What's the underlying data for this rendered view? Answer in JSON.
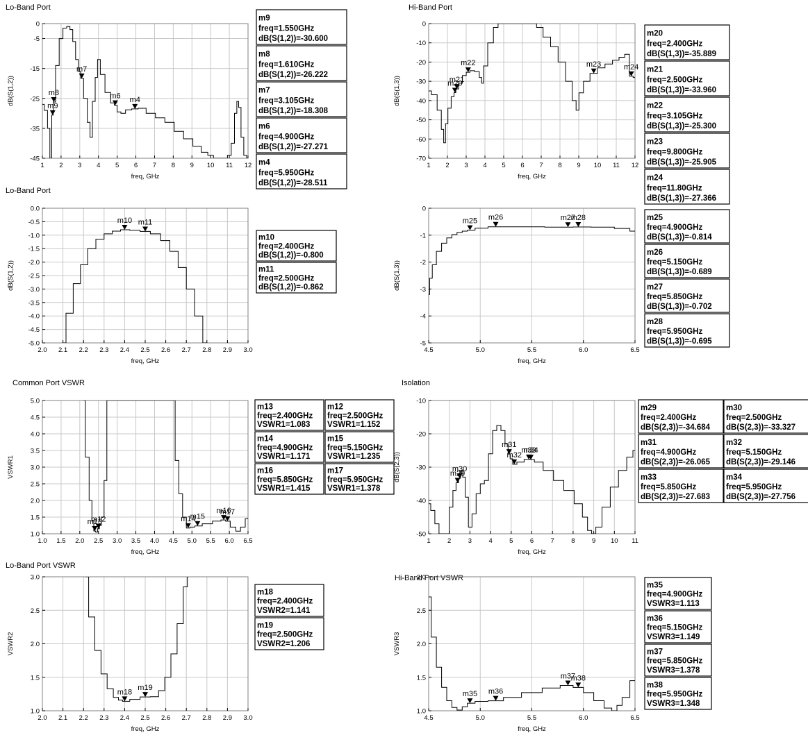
{
  "chart_data": [
    {
      "type": "line",
      "title": "Lo-Band Port",
      "xlabel": "freq, GHz",
      "ylabel": "dB(S(1,2))",
      "xlim": [
        1,
        12
      ],
      "ylim": [
        -45,
        0
      ],
      "xticks": [
        1,
        2,
        3,
        4,
        5,
        6,
        7,
        8,
        9,
        10,
        11,
        12
      ],
      "yticks": [
        0,
        -5,
        -15,
        -25,
        -35,
        -45
      ],
      "grid": true,
      "series": [
        {
          "x": [
            1.0,
            1.2,
            1.35,
            1.45,
            1.55,
            1.61,
            1.8,
            2.0,
            2.2,
            2.4,
            2.55,
            2.7,
            2.85,
            3.0,
            3.105,
            3.3,
            3.5,
            3.6,
            3.75,
            3.9,
            4.0,
            4.2,
            4.5,
            4.8,
            4.9,
            5.1,
            5.3,
            5.6,
            5.95,
            6.3,
            6.8,
            7.3,
            7.8,
            8.3,
            8.8,
            9.3,
            9.7,
            10.0,
            10.3,
            10.45,
            10.6,
            10.8,
            11.0,
            11.2,
            11.35,
            11.45,
            11.55,
            11.7,
            11.85,
            12.0
          ],
          "y": [
            -27,
            -29,
            -35,
            -45,
            -30.6,
            -26.222,
            -14,
            -5,
            -1.5,
            -1,
            -2,
            -6,
            -12,
            -16,
            -18.308,
            -25,
            -33,
            -38,
            -26,
            -18,
            -12,
            -17,
            -23,
            -26.5,
            -27.271,
            -29.5,
            -30,
            -28.8,
            -28.511,
            -28.3,
            -30,
            -31.5,
            -33,
            -36,
            -38.5,
            -41,
            -43,
            -44,
            -45,
            -45,
            -45,
            -45,
            -44,
            -40,
            -30,
            -26,
            -28,
            -38,
            -44,
            -45
          ]
        }
      ],
      "markers": [
        {
          "name": "m9",
          "freq": "1.550GHz",
          "label": "dB(S(1,2))=-30.600",
          "x": 1.55,
          "y": -30.6
        },
        {
          "name": "m8",
          "freq": "1.610GHz",
          "label": "dB(S(1,2))=-26.222",
          "x": 1.61,
          "y": -26.222
        },
        {
          "name": "m7",
          "freq": "3.105GHz",
          "label": "dB(S(1,2))=-18.308",
          "x": 3.105,
          "y": -18.308
        },
        {
          "name": "m6",
          "freq": "4.900GHz",
          "label": "dB(S(1,2))=-27.271",
          "x": 4.9,
          "y": -27.271
        },
        {
          "name": "m4",
          "freq": "5.950GHz",
          "label": "dB(S(1,2))=-28.511",
          "x": 5.95,
          "y": -28.511
        }
      ]
    },
    {
      "type": "line",
      "title": "Hi-Band Port",
      "xlabel": "freq, GHz",
      "ylabel": "dB(S(1,3))",
      "xlim": [
        1,
        12
      ],
      "ylim": [
        -70,
        0
      ],
      "xticks": [
        1,
        2,
        3,
        4,
        5,
        6,
        7,
        8,
        9,
        10,
        11,
        12
      ],
      "yticks": [
        0,
        -10,
        -20,
        -30,
        -40,
        -50,
        -60,
        -70
      ],
      "grid": true,
      "series": [
        {
          "x": [
            1.0,
            1.3,
            1.6,
            1.75,
            1.85,
            1.95,
            2.1,
            2.3,
            2.4,
            2.5,
            2.7,
            2.9,
            3.105,
            3.3,
            3.6,
            3.8,
            3.85,
            4.0,
            4.3,
            4.6,
            4.8,
            5.2,
            6.0,
            6.6,
            6.9,
            7.3,
            7.7,
            8.1,
            8.5,
            8.8,
            8.92,
            9.1,
            9.4,
            9.8,
            10.2,
            10.6,
            11.0,
            11.3,
            11.6,
            11.8,
            12.0
          ],
          "y": [
            -35,
            -37,
            -45,
            -55,
            -62,
            -52,
            -44,
            -38,
            -35.889,
            -33.96,
            -31,
            -27,
            -25.3,
            -24.5,
            -25,
            -28,
            -31,
            -22,
            -10,
            -2,
            0,
            0,
            0,
            0,
            -2,
            -7,
            -12,
            -20,
            -30,
            -40,
            -45,
            -36,
            -30,
            -25.905,
            -23,
            -21,
            -19,
            -17.5,
            -16,
            -27.366,
            -28
          ]
        }
      ],
      "markers": [
        {
          "name": "m20",
          "freq": "2.400GHz",
          "label": "dB(S(1,3))=-35.889",
          "x": 2.4,
          "y": -35.889
        },
        {
          "name": "m21",
          "freq": "2.500GHz",
          "label": "dB(S(1,3))=-33.960",
          "x": 2.5,
          "y": -33.96
        },
        {
          "name": "m22",
          "freq": "3.105GHz",
          "label": "dB(S(1,3))=-25.300",
          "x": 3.105,
          "y": -25.3
        },
        {
          "name": "m23",
          "freq": "9.800GHz",
          "label": "dB(S(1,3))=-25.905",
          "x": 9.8,
          "y": -25.905
        },
        {
          "name": "m24",
          "freq": "11.80GHz",
          "label": "dB(S(1,3))=-27.366",
          "x": 11.8,
          "y": -27.366
        }
      ]
    },
    {
      "type": "line",
      "title": "Lo-Band Port",
      "xlabel": "freq, GHz",
      "ylabel": "dB(S(1,2))",
      "xlim": [
        2.0,
        3.0
      ],
      "ylim": [
        -5.0,
        0.0
      ],
      "xticks": [
        2.0,
        2.1,
        2.2,
        2.3,
        2.4,
        2.5,
        2.6,
        2.7,
        2.8,
        2.9,
        3.0
      ],
      "yticks": [
        0.0,
        -0.5,
        -1.0,
        -1.5,
        -2.0,
        -2.5,
        -3.0,
        -3.5,
        -4.0,
        -4.5,
        -5.0
      ],
      "grid": true,
      "series": [
        {
          "x": [
            2.1,
            2.13,
            2.17,
            2.2,
            2.24,
            2.28,
            2.32,
            2.36,
            2.4,
            2.45,
            2.5,
            2.55,
            2.6,
            2.64,
            2.68,
            2.72,
            2.76,
            2.8
          ],
          "y": [
            -5.0,
            -3.9,
            -2.8,
            -2.1,
            -1.5,
            -1.15,
            -0.95,
            -0.85,
            -0.8,
            -0.82,
            -0.862,
            -0.95,
            -1.2,
            -1.6,
            -2.2,
            -3.0,
            -4.0,
            -5.0
          ]
        }
      ],
      "markers": [
        {
          "name": "m10",
          "freq": "2.400GHz",
          "label": "dB(S(1,2))=-0.800",
          "x": 2.4,
          "y": -0.8
        },
        {
          "name": "m11",
          "freq": "2.500GHz",
          "label": "dB(S(1,2))=-0.862",
          "x": 2.5,
          "y": -0.862
        }
      ]
    },
    {
      "type": "line",
      "title": "",
      "xlabel": "freq, GHz",
      "ylabel": "dB(S(1,3))",
      "xlim": [
        4.5,
        6.5
      ],
      "ylim": [
        -5,
        0
      ],
      "xticks": [
        4.5,
        5.0,
        5.5,
        6.0,
        6.5
      ],
      "yticks": [
        0,
        -1,
        -2,
        -3,
        -4,
        -5
      ],
      "grid": true,
      "series": [
        {
          "x": [
            4.5,
            4.52,
            4.55,
            4.6,
            4.65,
            4.7,
            4.75,
            4.8,
            4.85,
            4.9,
            5.0,
            5.15,
            5.4,
            5.85,
            5.95,
            6.2,
            6.4,
            6.5
          ],
          "y": [
            -3.2,
            -2.6,
            -2.1,
            -1.6,
            -1.3,
            -1.1,
            -0.98,
            -0.9,
            -0.85,
            -0.814,
            -0.74,
            -0.689,
            -0.69,
            -0.702,
            -0.695,
            -0.7,
            -0.75,
            -0.85
          ]
        }
      ],
      "markers": [
        {
          "name": "m25",
          "freq": "4.900GHz",
          "label": "dB(S(1,3))=-0.814",
          "x": 4.9,
          "y": -0.814
        },
        {
          "name": "m26",
          "freq": "5.150GHz",
          "label": "dB(S(1,3))=-0.689",
          "x": 5.15,
          "y": -0.689
        },
        {
          "name": "m27",
          "freq": "5.850GHz",
          "label": "dB(S(1,3))=-0.702",
          "x": 5.85,
          "y": -0.702
        },
        {
          "name": "m28",
          "freq": "5.950GHz",
          "label": "dB(S(1,3))=-0.695",
          "x": 5.95,
          "y": -0.695
        }
      ]
    },
    {
      "type": "line",
      "title": "Common Port VSWR",
      "xlabel": "freq, GHz",
      "ylabel": "VSWR1",
      "xlim": [
        1.0,
        6.5
      ],
      "ylim": [
        1.0,
        5.0
      ],
      "xticks": [
        1.0,
        1.5,
        2.0,
        2.5,
        3.0,
        3.5,
        4.0,
        4.5,
        5.0,
        5.5,
        6.0,
        6.5
      ],
      "yticks": [
        5.0,
        4.5,
        4.0,
        3.5,
        3.0,
        2.5,
        2.0,
        1.5,
        1.0
      ],
      "grid": true,
      "series": [
        {
          "x": [
            2.1,
            2.2,
            2.3,
            2.35,
            2.4,
            2.45,
            2.5,
            2.55,
            2.6,
            2.7,
            2.75,
            4.5,
            4.6,
            4.7,
            4.8,
            4.9,
            5.0,
            5.15,
            5.4,
            5.7,
            5.85,
            5.95,
            6.1,
            6.25,
            6.35,
            6.5
          ],
          "y": [
            5.0,
            3.3,
            2.0,
            1.4,
            1.083,
            1.05,
            1.152,
            1.25,
            1.5,
            2.6,
            5.0,
            5.0,
            3.2,
            2.2,
            1.5,
            1.171,
            1.2,
            1.235,
            1.3,
            1.38,
            1.415,
            1.378,
            1.2,
            1.08,
            1.2,
            1.45
          ]
        }
      ],
      "markers": [
        {
          "name": "m13",
          "freq": "2.400GHz",
          "label": "VSWR1=1.083",
          "x": 2.4,
          "y": 1.083
        },
        {
          "name": "m12",
          "freq": "2.500GHz",
          "label": "VSWR1=1.152",
          "x": 2.5,
          "y": 1.152
        },
        {
          "name": "m14",
          "freq": "4.900GHz",
          "label": "VSWR1=1.171",
          "x": 4.9,
          "y": 1.171
        },
        {
          "name": "m15",
          "freq": "5.150GHz",
          "label": "VSWR1=1.235",
          "x": 5.15,
          "y": 1.235
        },
        {
          "name": "m16",
          "freq": "5.850GHz",
          "label": "VSWR1=1.415",
          "x": 5.85,
          "y": 1.415
        },
        {
          "name": "m17",
          "freq": "5.950GHz",
          "label": "VSWR1=1.378",
          "x": 5.95,
          "y": 1.378
        }
      ]
    },
    {
      "type": "line",
      "title": "Isolation",
      "xlabel": "freq, GHz",
      "ylabel": "dB(S(2,3))",
      "xlim": [
        1,
        11
      ],
      "ylim": [
        -50,
        -10
      ],
      "xticks": [
        1,
        2,
        3,
        4,
        5,
        6,
        7,
        8,
        9,
        10,
        11
      ],
      "yticks": [
        -10,
        -20,
        -30,
        -40,
        -50
      ],
      "grid": true,
      "series": [
        {
          "x": [
            1.0,
            1.2,
            1.4,
            1.6,
            1.9,
            2.1,
            2.25,
            2.4,
            2.5,
            2.6,
            2.7,
            2.85,
            3.0,
            3.2,
            3.4,
            3.6,
            3.8,
            4.0,
            4.2,
            4.4,
            4.6,
            4.8,
            4.9,
            5.0,
            5.15,
            5.4,
            5.85,
            5.95,
            6.3,
            6.8,
            7.3,
            7.8,
            8.3,
            8.6,
            8.8,
            9.0,
            9.2,
            9.6,
            10.0,
            10.4,
            10.8,
            11.0
          ],
          "y": [
            -41,
            -43,
            -47,
            -50,
            -50,
            -42,
            -37,
            -34.684,
            -33.327,
            -31,
            -33,
            -39,
            -48,
            -44,
            -38,
            -35,
            -34,
            -26,
            -19,
            -17.5,
            -19,
            -23,
            -26.065,
            -27.5,
            -29.146,
            -28.5,
            -27.683,
            -27.756,
            -28.5,
            -31,
            -34,
            -37,
            -41,
            -45,
            -49,
            -50,
            -48,
            -42,
            -36,
            -31,
            -27,
            -25
          ]
        }
      ],
      "markers": [
        {
          "name": "m29",
          "freq": "2.400GHz",
          "label": "dB(S(2,3))=-34.684",
          "x": 2.4,
          "y": -34.684
        },
        {
          "name": "m30",
          "freq": "2.500GHz",
          "label": "dB(S(2,3))=-33.327",
          "x": 2.5,
          "y": -33.327
        },
        {
          "name": "m31",
          "freq": "4.900GHz",
          "label": "dB(S(2,3))=-26.065",
          "x": 4.9,
          "y": -26.065
        },
        {
          "name": "m32",
          "freq": "5.150GHz",
          "label": "dB(S(2,3))=-29.146",
          "x": 5.15,
          "y": -29.146
        },
        {
          "name": "m33",
          "freq": "5.850GHz",
          "label": "dB(S(2,3))=-27.683",
          "x": 5.85,
          "y": -27.683
        },
        {
          "name": "m34",
          "freq": "5.950GHz",
          "label": "dB(S(2,3))=-27.756",
          "x": 5.95,
          "y": -27.756
        }
      ]
    },
    {
      "type": "line",
      "title": "Lo-Band Port VSWR",
      "xlabel": "freq, GHz",
      "ylabel": "VSWR2",
      "xlim": [
        2.0,
        3.0
      ],
      "ylim": [
        1.0,
        3.0
      ],
      "xticks": [
        2.0,
        2.1,
        2.2,
        2.3,
        2.4,
        2.5,
        2.6,
        2.7,
        2.8,
        2.9,
        3.0
      ],
      "yticks": [
        3.0,
        2.5,
        2.0,
        1.5,
        1.0
      ],
      "grid": true,
      "series": [
        {
          "x": [
            2.21,
            2.24,
            2.27,
            2.3,
            2.33,
            2.36,
            2.38,
            2.4,
            2.45,
            2.5,
            2.55,
            2.58,
            2.61,
            2.64,
            2.67,
            2.7,
            2.71
          ],
          "y": [
            3.0,
            2.4,
            1.9,
            1.55,
            1.33,
            1.2,
            1.16,
            1.141,
            1.17,
            1.206,
            1.21,
            1.3,
            1.5,
            1.85,
            2.3,
            2.85,
            3.0
          ]
        }
      ],
      "markers": [
        {
          "name": "m18",
          "freq": "2.400GHz",
          "label": "VSWR2=1.141",
          "x": 2.4,
          "y": 1.141
        },
        {
          "name": "m19",
          "freq": "2.500GHz",
          "label": "VSWR2=1.206",
          "x": 2.5,
          "y": 1.206
        }
      ]
    },
    {
      "type": "line",
      "title": "Hi-Band Port VSWR",
      "xlabel": "freq, GHz",
      "ylabel": "VSWR3",
      "xlim": [
        4.5,
        6.5
      ],
      "ylim": [
        1.0,
        3.0
      ],
      "xticks": [
        4.5,
        5.0,
        5.5,
        6.0,
        6.5
      ],
      "yticks": [
        3.0,
        2.5,
        2.0,
        1.5,
        1.0
      ],
      "grid": true,
      "series": [
        {
          "x": [
            4.5,
            4.55,
            4.6,
            4.65,
            4.7,
            4.75,
            4.8,
            4.85,
            4.9,
            5.0,
            5.15,
            5.3,
            5.5,
            5.7,
            5.85,
            5.95,
            6.05,
            6.15,
            6.25,
            6.3,
            6.35,
            6.4,
            6.5
          ],
          "y": [
            2.7,
            2.1,
            1.65,
            1.35,
            1.15,
            1.05,
            1.01,
            1.06,
            1.113,
            1.14,
            1.149,
            1.2,
            1.27,
            1.34,
            1.378,
            1.348,
            1.27,
            1.15,
            1.04,
            1.0,
            1.08,
            1.2,
            1.45
          ]
        }
      ],
      "markers": [
        {
          "name": "m35",
          "freq": "4.900GHz",
          "label": "VSWR3=1.113",
          "x": 4.9,
          "y": 1.113
        },
        {
          "name": "m36",
          "freq": "5.150GHz",
          "label": "VSWR3=1.149",
          "x": 5.15,
          "y": 1.149
        },
        {
          "name": "m37",
          "freq": "5.850GHz",
          "label": "VSWR3=1.378",
          "x": 5.85,
          "y": 1.378
        },
        {
          "name": "m38",
          "freq": "5.950GHz",
          "label": "VSWR3=1.348",
          "x": 5.95,
          "y": 1.348
        }
      ]
    }
  ]
}
